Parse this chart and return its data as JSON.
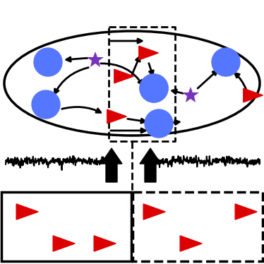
{
  "fig_w": 3.74,
  "fig_h": 3.74,
  "dpi": 100,
  "red": "#dd0000",
  "blue": "#5577ff",
  "purple": "#7733bb",
  "black": "#000000",
  "white": "#ffffff"
}
